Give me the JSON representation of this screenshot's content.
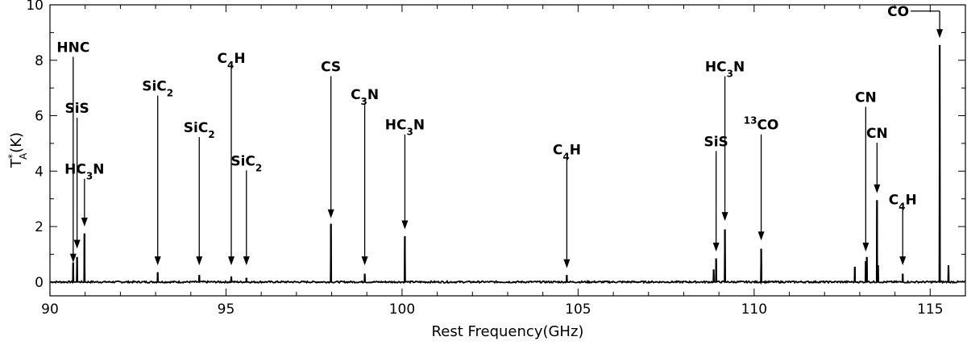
{
  "chart_data": {
    "type": "line",
    "title": "",
    "xlabel": "Rest Frequency(GHz)",
    "ylabel": {
      "main": "T",
      "sup": "*",
      "sub": "A",
      "rest": "(K)"
    },
    "xlim": [
      90,
      116
    ],
    "ylim": [
      -0.5,
      10
    ],
    "xticks": [
      90,
      95,
      100,
      105,
      110,
      115
    ],
    "yticks": [
      0,
      2,
      4,
      6,
      8,
      10
    ],
    "grid": false,
    "series": [
      {
        "peaks": [
          {
            "x": 90.66,
            "y": 0.7
          },
          {
            "x": 90.77,
            "y": 0.9
          },
          {
            "x": 90.98,
            "y": 1.75
          },
          {
            "x": 93.06,
            "y": 0.35
          },
          {
            "x": 94.24,
            "y": 0.25
          },
          {
            "x": 95.15,
            "y": 0.2
          },
          {
            "x": 95.58,
            "y": 0.15
          },
          {
            "x": 97.98,
            "y": 2.1
          },
          {
            "x": 98.94,
            "y": 0.3
          },
          {
            "x": 100.08,
            "y": 1.65
          },
          {
            "x": 104.68,
            "y": 0.25
          },
          {
            "x": 108.92,
            "y": 0.85
          },
          {
            "x": 108.85,
            "y": 0.45
          },
          {
            "x": 109.17,
            "y": 1.9
          },
          {
            "x": 110.2,
            "y": 1.2
          },
          {
            "x": 112.86,
            "y": 0.55
          },
          {
            "x": 113.17,
            "y": 0.75
          },
          {
            "x": 113.2,
            "y": 0.9
          },
          {
            "x": 113.49,
            "y": 2.95
          },
          {
            "x": 113.52,
            "y": 0.6
          },
          {
            "x": 114.22,
            "y": 0.3
          },
          {
            "x": 115.27,
            "y": 8.55
          },
          {
            "x": 115.52,
            "y": 0.6
          }
        ]
      }
    ],
    "annotations": [
      {
        "parts": [
          [
            "HNC",
            ""
          ]
        ],
        "x": 90.66,
        "y_text": 8.3,
        "y_arrow": 0.7
      },
      {
        "parts": [
          [
            "SiS",
            ""
          ]
        ],
        "x": 90.77,
        "y_text": 6.1,
        "y_arrow": 1.2
      },
      {
        "parts": [
          [
            "HC",
            ""
          ],
          [
            "3",
            "sub"
          ],
          [
            "N",
            ""
          ]
        ],
        "x": 90.98,
        "y_text": 3.9,
        "y_arrow": 2.0
      },
      {
        "parts": [
          [
            "SiC",
            ""
          ],
          [
            "2",
            "sub"
          ]
        ],
        "x": 93.06,
        "y_text": 6.9,
        "y_arrow": 0.6
      },
      {
        "parts": [
          [
            "SiC",
            ""
          ],
          [
            "2",
            "sub"
          ]
        ],
        "x": 94.24,
        "y_text": 5.4,
        "y_arrow": 0.6
      },
      {
        "parts": [
          [
            "C",
            ""
          ],
          [
            "4",
            "sub"
          ],
          [
            "H",
            ""
          ]
        ],
        "x": 95.15,
        "y_text": 7.9,
        "y_arrow": 0.6
      },
      {
        "parts": [
          [
            "SiC",
            ""
          ],
          [
            "2",
            "sub"
          ]
        ],
        "x": 95.58,
        "y_text": 4.2,
        "y_arrow": 0.6
      },
      {
        "parts": [
          [
            "CS",
            ""
          ]
        ],
        "x": 97.98,
        "y_text": 7.6,
        "y_arrow": 2.3
      },
      {
        "parts": [
          [
            "C",
            ""
          ],
          [
            "3",
            "sub"
          ],
          [
            "N",
            ""
          ]
        ],
        "x": 98.94,
        "y_text": 6.6,
        "y_arrow": 0.6
      },
      {
        "parts": [
          [
            "HC",
            ""
          ],
          [
            "3",
            "sub"
          ],
          [
            "N",
            ""
          ]
        ],
        "x": 100.08,
        "y_text": 5.5,
        "y_arrow": 1.9
      },
      {
        "parts": [
          [
            "C",
            ""
          ],
          [
            "4",
            "sub"
          ],
          [
            "H",
            ""
          ]
        ],
        "x": 104.68,
        "y_text": 4.6,
        "y_arrow": 0.5
      },
      {
        "parts": [
          [
            "SiS",
            ""
          ]
        ],
        "x": 108.92,
        "y_text": 4.9,
        "y_arrow": 1.1
      },
      {
        "parts": [
          [
            "HC",
            ""
          ],
          [
            "3",
            "sub"
          ],
          [
            "N",
            ""
          ]
        ],
        "x": 109.17,
        "y_text": 7.6,
        "y_arrow": 2.2
      },
      {
        "parts": [
          [
            "13",
            "sup"
          ],
          [
            "CO",
            ""
          ]
        ],
        "x": 110.2,
        "y_text": 5.5,
        "y_arrow": 1.5
      },
      {
        "parts": [
          [
            "CN",
            ""
          ]
        ],
        "x": 113.17,
        "y_text": 6.5,
        "y_arrow": 1.1
      },
      {
        "parts": [
          [
            "CN",
            ""
          ]
        ],
        "x": 113.49,
        "y_text": 5.2,
        "y_arrow": 3.2
      },
      {
        "parts": [
          [
            "C",
            ""
          ],
          [
            "4",
            "sub"
          ],
          [
            "H",
            ""
          ]
        ],
        "x": 114.22,
        "y_text": 2.8,
        "y_arrow": 0.6
      },
      {
        "parts": [
          [
            "CO",
            ""
          ]
        ],
        "x": 115.27,
        "y_text": 9.6,
        "y_arrow": 8.8,
        "side": "left"
      }
    ]
  }
}
